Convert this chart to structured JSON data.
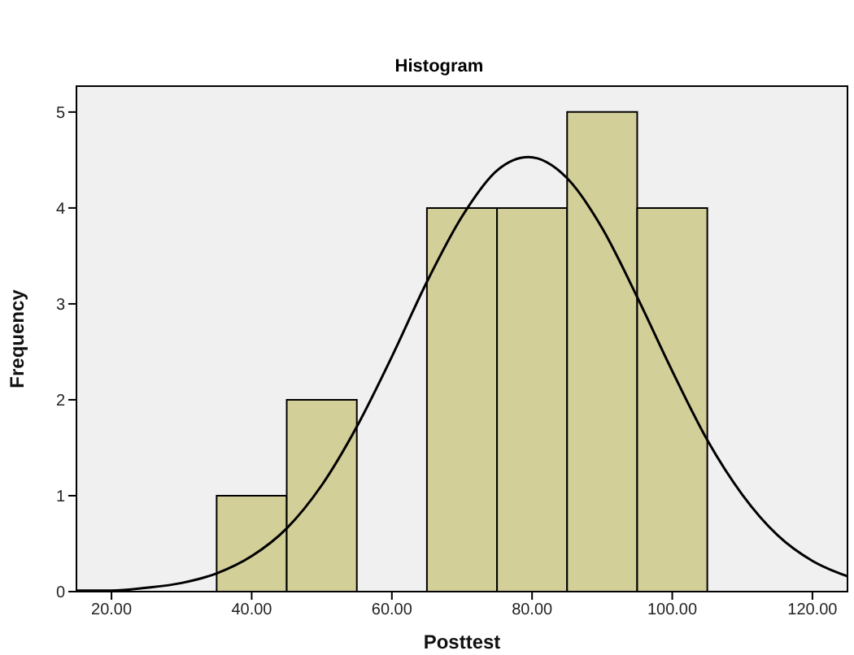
{
  "chart_data": {
    "type": "histogram",
    "title": "Histogram",
    "xlabel": "Posttest",
    "ylabel": "Frequency",
    "bins": [
      35,
      45,
      55,
      65,
      75,
      85,
      95,
      105
    ],
    "values": [
      1,
      2,
      0,
      4,
      4,
      5,
      4
    ],
    "color": "#d3cf98",
    "series": [
      {
        "type": "line",
        "color": "#000000",
        "x": [
          15,
          20,
          25,
          30,
          35,
          40,
          45,
          50,
          55,
          60,
          65,
          70,
          75,
          79.5,
          85,
          90,
          95,
          100,
          105,
          110,
          115,
          120,
          125
        ],
        "values": [
          0.01,
          0.01,
          0.04,
          0.09,
          0.19,
          0.37,
          0.66,
          1.11,
          1.72,
          2.45,
          3.23,
          3.91,
          4.39,
          4.53,
          4.31,
          3.79,
          3.07,
          2.3,
          1.58,
          1.01,
          0.59,
          0.32,
          0.16
        ]
      }
    ],
    "xlim": [
      15,
      125
    ],
    "xticks": [
      {
        "value": 20,
        "label": "20.00"
      },
      {
        "value": 40,
        "label": "40.00"
      },
      {
        "value": 60,
        "label": "60.00"
      },
      {
        "value": 80,
        "label": "80.00"
      },
      {
        "value": 100,
        "label": "100.00"
      },
      {
        "value": 120,
        "label": "120.00"
      }
    ],
    "ylim": [
      0,
      5.27
    ],
    "yticks": [
      0,
      1,
      2,
      3,
      4,
      5
    ],
    "grid": false,
    "marker": "none",
    "line_style": "solid"
  }
}
